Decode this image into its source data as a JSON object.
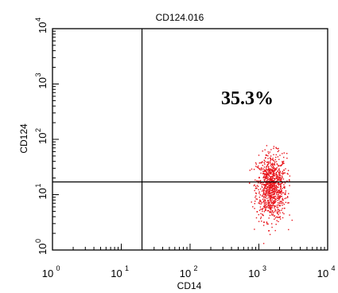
{
  "chart_data": {
    "type": "scatter",
    "title": "CD124.016",
    "xlabel": "CD14",
    "ylabel": "CD124",
    "x_scale": "log",
    "y_scale": "log",
    "xlim": [
      1,
      10000
    ],
    "ylim": [
      1,
      10000
    ],
    "x_ticks": [
      {
        "base": "10",
        "exp": "0",
        "value": 1
      },
      {
        "base": "10",
        "exp": "1",
        "value": 10
      },
      {
        "base": "10",
        "exp": "2",
        "value": 100
      },
      {
        "base": "10",
        "exp": "3",
        "value": 1000
      },
      {
        "base": "10",
        "exp": "4",
        "value": 10000
      }
    ],
    "y_ticks": [
      {
        "base": "10",
        "exp": "0",
        "value": 1
      },
      {
        "base": "10",
        "exp": "1",
        "value": 10
      },
      {
        "base": "10",
        "exp": "2",
        "value": 100
      },
      {
        "base": "10",
        "exp": "3",
        "value": 1000
      },
      {
        "base": "10",
        "exp": "4",
        "value": 10000
      }
    ],
    "gates": {
      "x": 20,
      "y": 17
    },
    "annotation": "35.3%",
    "annotation_quadrant": "upper-right",
    "population": {
      "center_x": 1500,
      "center_y": 14,
      "x_range": [
        700,
        3000
      ],
      "y_range": [
        1,
        120
      ]
    },
    "point_color": "#e8141b",
    "grid": false,
    "legend": "none"
  }
}
